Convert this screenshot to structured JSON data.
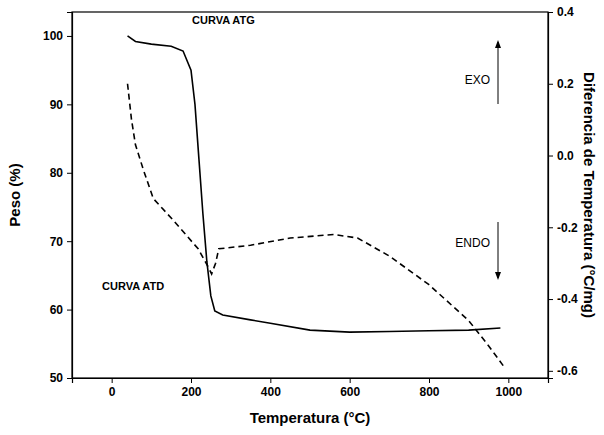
{
  "chart_data": {
    "type": "line",
    "x_label": "Temperatura (°C)",
    "y_label": "Peso (%)",
    "y2_label": "Diferencia de Temperatura (°C/mg)",
    "xlim": [
      -100,
      1100
    ],
    "xticks": [
      0,
      200,
      400,
      600,
      800,
      1000
    ],
    "ylim": [
      50,
      103.5
    ],
    "yticks": [
      50,
      60,
      70,
      80,
      90,
      100
    ],
    "y2lim": [
      -0.62,
      0.4
    ],
    "y2ticks": [
      -0.6,
      -0.4,
      -0.2,
      {
        "value": 0,
        "label": "0.0"
      },
      0.2,
      0.4
    ],
    "annotations": [
      "EXO",
      "ENDO"
    ],
    "series": [
      {
        "name": "CURVA ATG",
        "color": "#000000",
        "line_style": "solid",
        "axis": "y",
        "x": [
          40,
          60,
          100,
          150,
          180,
          200,
          210,
          220,
          230,
          240,
          250,
          260,
          280,
          350,
          400,
          500,
          600,
          700,
          800,
          900,
          980
        ],
        "values": [
          100,
          99.2,
          98.8,
          98.5,
          97.8,
          95,
          90,
          82,
          74,
          67,
          62,
          59.8,
          59.2,
          58.5,
          58,
          57,
          56.7,
          56.8,
          56.9,
          57,
          57.3
        ]
      },
      {
        "name": "CURVA ATD",
        "color": "#000000",
        "line_style": "dashed",
        "axis": "y2",
        "x": [
          40,
          50,
          60,
          80,
          105,
          155,
          218,
          243,
          252,
          262,
          270,
          350,
          450,
          560,
          620,
          700,
          800,
          900,
          950,
          990
        ],
        "values": [
          0.2,
          0.1,
          0.03,
          -0.04,
          -0.12,
          -0.18,
          -0.26,
          -0.31,
          -0.33,
          -0.3,
          -0.26,
          -0.25,
          -0.23,
          -0.22,
          -0.23,
          -0.28,
          -0.36,
          -0.46,
          -0.53,
          -0.59
        ]
      }
    ]
  }
}
